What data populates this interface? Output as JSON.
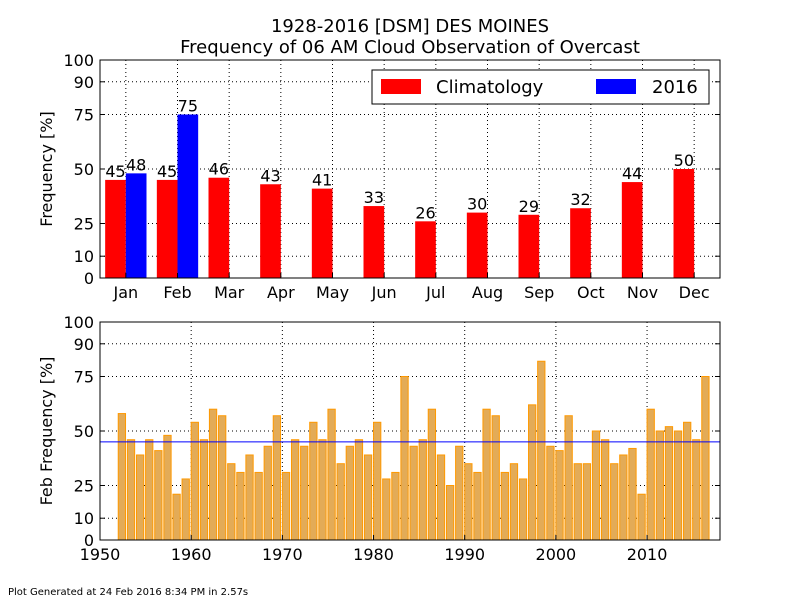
{
  "chart_data": [
    {
      "type": "bar",
      "title": "1928-2016 [DSM] DES MOINES",
      "subtitle": "Frequency of 06 AM Cloud Observation of Overcast",
      "xlabel": "",
      "ylabel": "Frequency [%]",
      "ylim": [
        0,
        100
      ],
      "yticks": [
        0,
        10,
        25,
        50,
        75,
        90,
        100
      ],
      "grid": true,
      "legend_position": "top-right",
      "categories": [
        "Jan",
        "Feb",
        "Mar",
        "Apr",
        "May",
        "Jun",
        "Jul",
        "Aug",
        "Sep",
        "Oct",
        "Nov",
        "Dec"
      ],
      "series": [
        {
          "name": "Climatology",
          "color": "#ff0000",
          "values": [
            45,
            45,
            46,
            43,
            41,
            33,
            26,
            30,
            29,
            32,
            44,
            50
          ]
        },
        {
          "name": "2016",
          "color": "#0000ff",
          "values": [
            48,
            75,
            null,
            null,
            null,
            null,
            null,
            null,
            null,
            null,
            null,
            null
          ]
        }
      ]
    },
    {
      "type": "bar",
      "title": "",
      "xlabel": "",
      "ylabel": "Feb Frequency [%]",
      "ylim": [
        0,
        100
      ],
      "yticks": [
        0,
        10,
        25,
        50,
        75,
        90,
        100
      ],
      "xlim": [
        1950,
        2018
      ],
      "xticks": [
        1950,
        1960,
        1970,
        1980,
        1990,
        2000,
        2010
      ],
      "grid": true,
      "bar_color": "#e3ab57",
      "bar_edge_color": "#ff9900",
      "reference_line": {
        "value": 45,
        "color": "#0000ff"
      },
      "x": [
        1952,
        1953,
        1954,
        1955,
        1956,
        1957,
        1958,
        1959,
        1960,
        1961,
        1962,
        1963,
        1964,
        1965,
        1966,
        1967,
        1968,
        1969,
        1970,
        1971,
        1972,
        1973,
        1974,
        1975,
        1976,
        1977,
        1978,
        1979,
        1980,
        1981,
        1982,
        1983,
        1984,
        1985,
        1986,
        1987,
        1988,
        1989,
        1990,
        1991,
        1992,
        1993,
        1994,
        1995,
        1996,
        1997,
        1998,
        1999,
        2000,
        2001,
        2002,
        2003,
        2004,
        2005,
        2006,
        2007,
        2008,
        2009,
        2010,
        2011,
        2012,
        2013,
        2014,
        2015,
        2016
      ],
      "values": [
        58,
        46,
        39,
        46,
        41,
        48,
        21,
        28,
        54,
        46,
        60,
        57,
        35,
        31,
        39,
        31,
        43,
        57,
        31,
        46,
        43,
        54,
        46,
        60,
        35,
        43,
        46,
        39,
        54,
        28,
        31,
        75,
        43,
        46,
        60,
        39,
        25,
        43,
        35,
        31,
        60,
        57,
        31,
        35,
        28,
        62,
        82,
        43,
        41,
        57,
        35,
        35,
        50,
        46,
        35,
        39,
        42,
        21,
        60,
        50,
        52,
        50,
        54,
        46,
        75
      ]
    }
  ],
  "footer": "Plot Generated at 24 Feb 2016 8:34 PM in 2.57s"
}
